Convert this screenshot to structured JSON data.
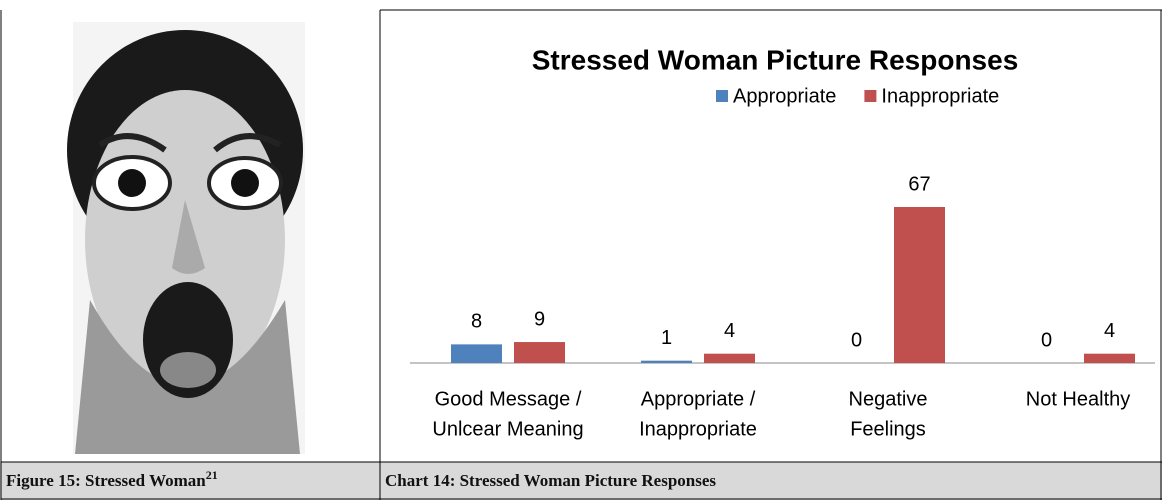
{
  "figure_caption": {
    "text": "Figure 15: Stressed Woman",
    "superscript": "21"
  },
  "chart_caption": "Chart 14: Stressed Woman Picture Responses",
  "chart_data": {
    "type": "bar",
    "title": "Stressed Woman Picture Responses",
    "categories": [
      [
        "Good Message /",
        "Unlcear Meaning"
      ],
      [
        "Appropriate /",
        "Inappropriate"
      ],
      [
        "Negative",
        "Feelings"
      ],
      [
        "Not Healthy"
      ]
    ],
    "series": [
      {
        "name": "Appropriate",
        "color": "#4f81bd",
        "values": [
          8,
          1,
          0,
          0
        ]
      },
      {
        "name": "Inappropriate",
        "color": "#c0504d",
        "values": [
          9,
          4,
          67,
          4
        ]
      }
    ],
    "legend": "top"
  }
}
